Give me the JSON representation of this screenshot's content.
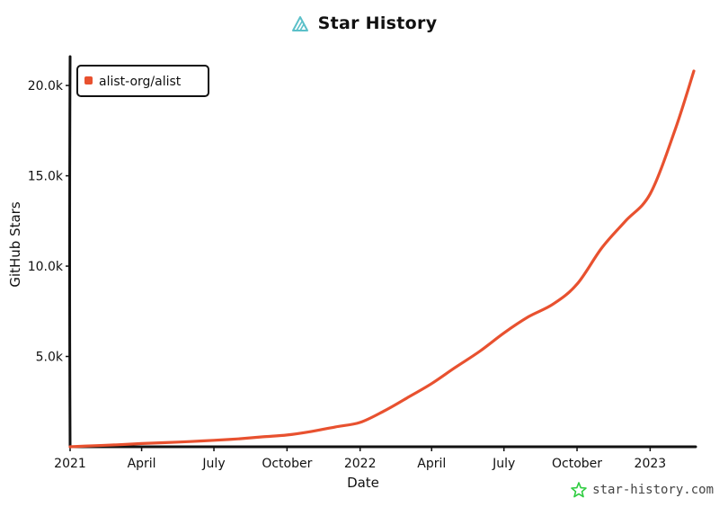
{
  "header": {
    "title": "Star History",
    "logo_icon": "star-history-logo-icon"
  },
  "watermark": {
    "text": "star-history.com",
    "icon": "star-icon"
  },
  "colors": {
    "series": "#e8512f",
    "axis": "#111111",
    "logo": "#5bc0c9",
    "watermark_icon": "#2ecc40"
  },
  "chart_data": {
    "type": "line",
    "title": "Star History",
    "xlabel": "Date",
    "ylabel": "GitHub Stars",
    "x_tick_labels": [
      "2021",
      "April",
      "July",
      "October",
      "2022",
      "April",
      "July",
      "October",
      "2023"
    ],
    "y_tick_labels": [
      "5.0k",
      "10.0k",
      "15.0k",
      "20.0k"
    ],
    "y_tick_values": [
      5000,
      10000,
      15000,
      20000
    ],
    "ylim": [
      0,
      21000
    ],
    "xlim": [
      "2021-01-01",
      "2023-02-25"
    ],
    "legend": {
      "entries": [
        "alist-org/alist"
      ],
      "placement": "top-left"
    },
    "grid": false,
    "series": [
      {
        "name": "alist-org/alist",
        "points": [
          {
            "x": "2021-01-01",
            "y": 0
          },
          {
            "x": "2021-02-01",
            "y": 60
          },
          {
            "x": "2021-03-01",
            "y": 110
          },
          {
            "x": "2021-04-01",
            "y": 180
          },
          {
            "x": "2021-05-01",
            "y": 230
          },
          {
            "x": "2021-06-01",
            "y": 290
          },
          {
            "x": "2021-07-01",
            "y": 360
          },
          {
            "x": "2021-08-01",
            "y": 440
          },
          {
            "x": "2021-09-01",
            "y": 550
          },
          {
            "x": "2021-10-01",
            "y": 650
          },
          {
            "x": "2021-11-01",
            "y": 850
          },
          {
            "x": "2021-12-01",
            "y": 1100
          },
          {
            "x": "2022-01-01",
            "y": 1350
          },
          {
            "x": "2022-02-01",
            "y": 2000
          },
          {
            "x": "2022-03-01",
            "y": 2700
          },
          {
            "x": "2022-04-01",
            "y": 3500
          },
          {
            "x": "2022-05-01",
            "y": 4400
          },
          {
            "x": "2022-06-01",
            "y": 5300
          },
          {
            "x": "2022-07-01",
            "y": 6300
          },
          {
            "x": "2022-08-01",
            "y": 7200
          },
          {
            "x": "2022-09-01",
            "y": 7900
          },
          {
            "x": "2022-10-01",
            "y": 9000
          },
          {
            "x": "2022-11-01",
            "y": 11000
          },
          {
            "x": "2022-12-01",
            "y": 12500
          },
          {
            "x": "2023-01-01",
            "y": 14000
          },
          {
            "x": "2023-02-01",
            "y": 17500
          },
          {
            "x": "2023-02-25",
            "y": 20800
          }
        ]
      }
    ]
  }
}
